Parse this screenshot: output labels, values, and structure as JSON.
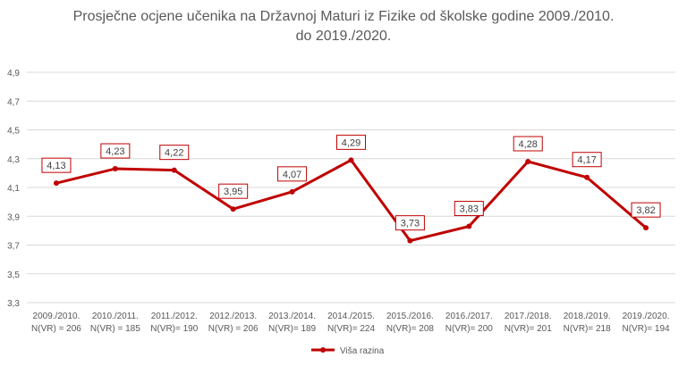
{
  "chart_data": {
    "type": "line",
    "title_lines": [
      "Prosječne ocjene učenika na Državnoj Maturi iz Fizike od školske godine 2009./2010.",
      "do 2019./2020."
    ],
    "categories": [
      [
        "2009./2010.",
        "N(VR) = 206"
      ],
      [
        "2010./2011.",
        "N(VR) = 185"
      ],
      [
        "2011./2012.",
        "N(VR)= 190"
      ],
      [
        "2012./2013.",
        "N(VR) = 206"
      ],
      [
        "2013./2014.",
        "N(VR)= 189"
      ],
      [
        "2014./2015.",
        "N(VR)= 224"
      ],
      [
        "2015./2016.",
        "N(VR)= 208"
      ],
      [
        "2016./2017.",
        "N(VR)= 200"
      ],
      [
        "2017./2018.",
        "N(VR)= 201"
      ],
      [
        "2018./2019.",
        "N(VR)= 218"
      ],
      [
        "2019./2020.",
        "N(VR)= 194"
      ]
    ],
    "series": [
      {
        "name": "Viša razina",
        "values": [
          4.13,
          4.23,
          4.22,
          3.95,
          4.07,
          4.29,
          3.73,
          3.83,
          4.28,
          4.17,
          3.82
        ],
        "labels": [
          "4,13",
          "4,23",
          "4,22",
          "3,95",
          "4,07",
          "4,29",
          "3,73",
          "3,83",
          "4,28",
          "4,17",
          "3,82"
        ]
      }
    ],
    "ylim": [
      3.3,
      4.9
    ],
    "yticks": [
      3.3,
      3.5,
      3.7,
      3.9,
      4.1,
      4.3,
      4.5,
      4.7,
      4.9
    ],
    "ytick_labels": [
      "3,3",
      "3,5",
      "3,7",
      "3,9",
      "4,1",
      "4,3",
      "4,5",
      "4,7",
      "4,9"
    ],
    "grid": true,
    "legend": "bottom",
    "colors": {
      "series": "#c00000",
      "grid": "#d9d9d9",
      "text": "#595959",
      "label_border": "#c00000"
    }
  }
}
